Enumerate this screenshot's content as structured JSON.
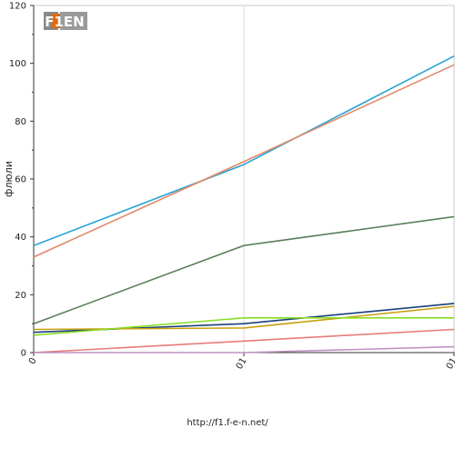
{
  "logo": {
    "text": "F1EN"
  },
  "footer": {
    "url": "http://f1.f-e-n.net/"
  },
  "chart_data": {
    "type": "line",
    "title": "",
    "xlabel": "",
    "ylabel": "флюли",
    "categories": [
      "0",
      "01",
      "01"
    ],
    "ylim": [
      0,
      120
    ],
    "yticks": [
      0,
      20,
      40,
      60,
      80,
      100,
      120
    ],
    "grid": true,
    "series": [
      {
        "color": "#29a3d6",
        "values": [
          37,
          65,
          102.5
        ]
      },
      {
        "color": "#e08a6a",
        "values": [
          33,
          66,
          99.5
        ]
      },
      {
        "color": "#5a7f5a",
        "values": [
          10,
          37,
          47
        ]
      },
      {
        "color": "#1a3f7a",
        "values": [
          7,
          10,
          17
        ]
      },
      {
        "color": "#c8a010",
        "values": [
          8,
          8.5,
          16
        ]
      },
      {
        "color": "#88dd22",
        "values": [
          6,
          12,
          12
        ]
      },
      {
        "color": "#e87a7a",
        "values": [
          0,
          4,
          8
        ]
      },
      {
        "color": "#c090c0",
        "values": [
          0,
          0,
          2
        ]
      }
    ]
  }
}
